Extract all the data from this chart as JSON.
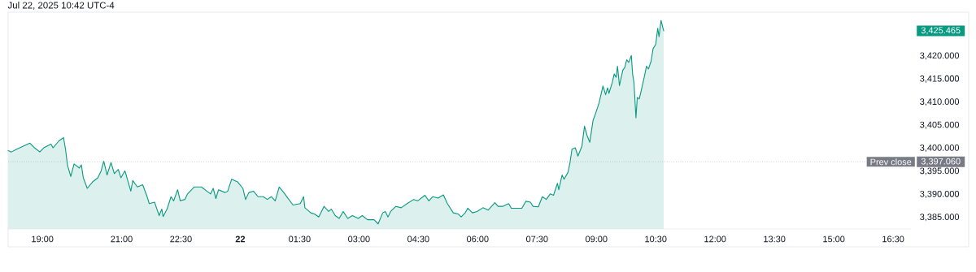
{
  "chart_data": {
    "type": "area",
    "title": "Jul 22, 2025 10:42 UTC-4",
    "xlim": [
      "2025-07-21T18:08",
      "2025-07-22T16:57"
    ],
    "ylim": [
      3382.5,
      3429.5
    ],
    "xticks": [
      {
        "value": "2025-07-21T19:00",
        "label": "19:00"
      },
      {
        "value": "2025-07-21T21:00",
        "label": "21:00"
      },
      {
        "value": "2025-07-21T22:30",
        "label": "22:30"
      },
      {
        "value": "2025-07-22T00:00",
        "label": "**22**"
      },
      {
        "value": "2025-07-22T01:30",
        "label": "01:30"
      },
      {
        "value": "2025-07-22T03:00",
        "label": "03:00"
      },
      {
        "value": "2025-07-22T04:30",
        "label": "04:30"
      },
      {
        "value": "2025-07-22T06:00",
        "label": "06:00"
      },
      {
        "value": "2025-07-22T07:30",
        "label": "07:30"
      },
      {
        "value": "2025-07-22T09:00",
        "label": "09:00"
      },
      {
        "value": "2025-07-22T10:30",
        "label": "10:30"
      },
      {
        "value": "2025-07-22T12:00",
        "label": "12:00"
      },
      {
        "value": "2025-07-22T13:30",
        "label": "13:30"
      },
      {
        "value": "2025-07-22T15:00",
        "label": "15:00"
      },
      {
        "value": "2025-07-22T16:30",
        "label": "16:30"
      }
    ],
    "yticks": [
      {
        "value": 3385,
        "label": "3,385.000"
      },
      {
        "value": 3390,
        "label": "3,390.000"
      },
      {
        "value": 3395,
        "label": "3,395.000"
      },
      {
        "value": 3400,
        "label": "3,400.000"
      },
      {
        "value": 3405,
        "label": "3,405.000"
      },
      {
        "value": 3410,
        "label": "3,410.000"
      },
      {
        "value": 3415,
        "label": "3,415.000"
      },
      {
        "value": 3420,
        "label": "3,420.000"
      }
    ],
    "ref_lines": [
      {
        "axis": "y",
        "value": 3397.06,
        "label": "Prev close",
        "color": "#b2b5be",
        "line_style": "dotted"
      }
    ],
    "annotations": [
      "3,425.465",
      "3,397.060"
    ],
    "series": [
      {
        "color": "#089981",
        "x": [
          "2025-07-21T18:08",
          "2025-07-21T18:13",
          "2025-07-21T18:21",
          "2025-07-21T18:41",
          "2025-07-21T18:48",
          "2025-07-21T18:56",
          "2025-07-21T19:02",
          "2025-07-21T19:13",
          "2025-07-21T19:16",
          "2025-07-21T19:25",
          "2025-07-21T19:32",
          "2025-07-21T19:35",
          "2025-07-21T19:38",
          "2025-07-21T19:43",
          "2025-07-21T19:48",
          "2025-07-21T19:56",
          "2025-07-21T19:59",
          "2025-07-21T20:02",
          "2025-07-21T20:08",
          "2025-07-21T20:16",
          "2025-07-21T20:24",
          "2025-07-21T20:29",
          "2025-07-21T20:33",
          "2025-07-21T20:38",
          "2025-07-21T20:44",
          "2025-07-21T20:49",
          "2025-07-21T20:55",
          "2025-07-21T20:59",
          "2025-07-21T21:05",
          "2025-07-21T21:07",
          "2025-07-21T21:14",
          "2025-07-21T21:17",
          "2025-07-21T21:24",
          "2025-07-21T21:32",
          "2025-07-21T21:38",
          "2025-07-21T21:42",
          "2025-07-21T21:50",
          "2025-07-21T21:57",
          "2025-07-21T22:01",
          "2025-07-21T22:03",
          "2025-07-21T22:09",
          "2025-07-21T22:15",
          "2025-07-21T22:19",
          "2025-07-21T22:25",
          "2025-07-21T22:29",
          "2025-07-21T22:36",
          "2025-07-21T22:40",
          "2025-07-21T22:50",
          "2025-07-21T23:01",
          "2025-07-21T23:15",
          "2025-07-21T23:19",
          "2025-07-21T23:23",
          "2025-07-21T23:27",
          "2025-07-21T23:37",
          "2025-07-21T23:41",
          "2025-07-21T23:47",
          "2025-07-21T23:56",
          "2025-07-22T00:04",
          "2025-07-22T00:08",
          "2025-07-22T00:13",
          "2025-07-22T00:20",
          "2025-07-22T00:27",
          "2025-07-22T00:35",
          "2025-07-22T00:41",
          "2025-07-22T00:47",
          "2025-07-22T00:53",
          "2025-07-22T00:59",
          "2025-07-22T01:06",
          "2025-07-22T01:12",
          "2025-07-22T01:20",
          "2025-07-22T01:31",
          "2025-07-22T01:36",
          "2025-07-22T01:38",
          "2025-07-22T01:47",
          "2025-07-22T01:53",
          "2025-07-22T01:59",
          "2025-07-22T02:07",
          "2025-07-22T02:14",
          "2025-07-22T02:18",
          "2025-07-22T02:24",
          "2025-07-22T02:30",
          "2025-07-22T02:36",
          "2025-07-22T02:43",
          "2025-07-22T02:50",
          "2025-07-22T02:59",
          "2025-07-22T03:05",
          "2025-07-22T03:13",
          "2025-07-22T03:23",
          "2025-07-22T03:29",
          "2025-07-22T03:36",
          "2025-07-22T03:40",
          "2025-07-22T03:44",
          "2025-07-22T03:48",
          "2025-07-22T03:56",
          "2025-07-22T04:04",
          "2025-07-22T04:13",
          "2025-07-22T04:23",
          "2025-07-22T04:29",
          "2025-07-22T04:40",
          "2025-07-22T04:46",
          "2025-07-22T04:52",
          "2025-07-22T05:00",
          "2025-07-22T05:08",
          "2025-07-22T05:14",
          "2025-07-22T05:23",
          "2025-07-22T05:31",
          "2025-07-22T05:35",
          "2025-07-22T05:41",
          "2025-07-22T05:45",
          "2025-07-22T05:52",
          "2025-07-22T05:59",
          "2025-07-22T06:08",
          "2025-07-22T06:16",
          "2025-07-22T06:26",
          "2025-07-22T06:31",
          "2025-07-22T06:38",
          "2025-07-22T06:47",
          "2025-07-22T06:51",
          "2025-07-22T07:01",
          "2025-07-22T07:07",
          "2025-07-22T07:13",
          "2025-07-22T07:20",
          "2025-07-22T07:24",
          "2025-07-22T07:32",
          "2025-07-22T07:38",
          "2025-07-22T07:44",
          "2025-07-22T07:50",
          "2025-07-22T07:55",
          "2025-07-22T08:01",
          "2025-07-22T08:03",
          "2025-07-22T08:08",
          "2025-07-22T08:11",
          "2025-07-22T08:17",
          "2025-07-22T08:20",
          "2025-07-22T08:23",
          "2025-07-22T08:28",
          "2025-07-22T08:32",
          "2025-07-22T08:38",
          "2025-07-22T08:42",
          "2025-07-22T08:46",
          "2025-07-22T08:50",
          "2025-07-22T08:55",
          "2025-07-22T08:58",
          "2025-07-22T09:04",
          "2025-07-22T09:10",
          "2025-07-22T09:14",
          "2025-07-22T09:17",
          "2025-07-22T09:19",
          "2025-07-22T09:24",
          "2025-07-22T09:27",
          "2025-07-22T09:30",
          "2025-07-22T09:32",
          "2025-07-22T09:35",
          "2025-07-22T09:40",
          "2025-07-22T09:43",
          "2025-07-22T09:46",
          "2025-07-22T09:49",
          "2025-07-22T09:53",
          "2025-07-22T09:55",
          "2025-07-22T09:57",
          "2025-07-22T10:00",
          "2025-07-22T10:02",
          "2025-07-22T10:05",
          "2025-07-22T10:08",
          "2025-07-22T10:13",
          "2025-07-22T10:16",
          "2025-07-22T10:19",
          "2025-07-22T10:23",
          "2025-07-22T10:26",
          "2025-07-22T10:30",
          "2025-07-22T10:33",
          "2025-07-22T10:35",
          "2025-07-22T10:38",
          "2025-07-22T10:42"
        ],
        "values": [
          3399.5,
          3399.2,
          3399.8,
          3401.1,
          3400.1,
          3399.2,
          3400.1,
          3400.9,
          3400.1,
          3401.6,
          3402.3,
          3399.8,
          3396.3,
          3393.9,
          3396.6,
          3395.7,
          3396.4,
          3393.6,
          3391.3,
          3392.7,
          3393.6,
          3395.1,
          3397.2,
          3394.2,
          3396.9,
          3394.5,
          3395.4,
          3393.6,
          3395.1,
          3394.2,
          3390.7,
          3393.0,
          3391.6,
          3392.1,
          3389.8,
          3388.0,
          3388.3,
          3385.4,
          3386.8,
          3385.2,
          3386.8,
          3389.5,
          3388.6,
          3391.0,
          3388.6,
          3388.9,
          3390.1,
          3391.6,
          3391.6,
          3390.1,
          3391.3,
          3389.1,
          3391.0,
          3390.4,
          3390.7,
          3393.3,
          3392.7,
          3391.3,
          3388.9,
          3390.4,
          3390.7,
          3389.5,
          3389.5,
          3388.9,
          3389.5,
          3388.6,
          3391.6,
          3390.4,
          3389.2,
          3387.7,
          3388.0,
          3389.5,
          3387.1,
          3386.0,
          3385.7,
          3385.1,
          3387.4,
          3386.3,
          3386.8,
          3385.4,
          3384.8,
          3386.3,
          3384.8,
          3385.4,
          3384.8,
          3385.4,
          3384.5,
          3384.5,
          3383.6,
          3386.0,
          3386.3,
          3385.1,
          3386.3,
          3387.4,
          3387.1,
          3388.0,
          3388.9,
          3388.6,
          3389.8,
          3388.6,
          3389.5,
          3389.2,
          3389.9,
          3388.0,
          3386.0,
          3385.7,
          3385.1,
          3386.0,
          3387.0,
          3386.0,
          3386.3,
          3387.1,
          3386.6,
          3388.2,
          3387.4,
          3387.4,
          3388.0,
          3387.0,
          3387.0,
          3387.0,
          3388.5,
          3388.3,
          3387.4,
          3387.3,
          3389.5,
          3388.9,
          3390.1,
          3389.8,
          3392.4,
          3391.0,
          3394.2,
          3393.3,
          3394.8,
          3396.9,
          3399.8,
          3400.1,
          3398.3,
          3400.4,
          3404.8,
          3402.7,
          3401.3,
          3406.1,
          3407.2,
          3409.8,
          3413.5,
          3411.6,
          3413.1,
          3411.9,
          3414.2,
          3416.1,
          3415.4,
          3417.8,
          3413.6,
          3416.9,
          3417.5,
          3419.2,
          3418.6,
          3420.1,
          3416.0,
          3414.2,
          3406.6,
          3411.0,
          3410.7,
          3412.5,
          3415.7,
          3417.8,
          3417.2,
          3418.9,
          3421.6,
          3422.5,
          3426.0,
          3424.2,
          3427.7,
          3425.465
        ]
      }
    ]
  }
}
